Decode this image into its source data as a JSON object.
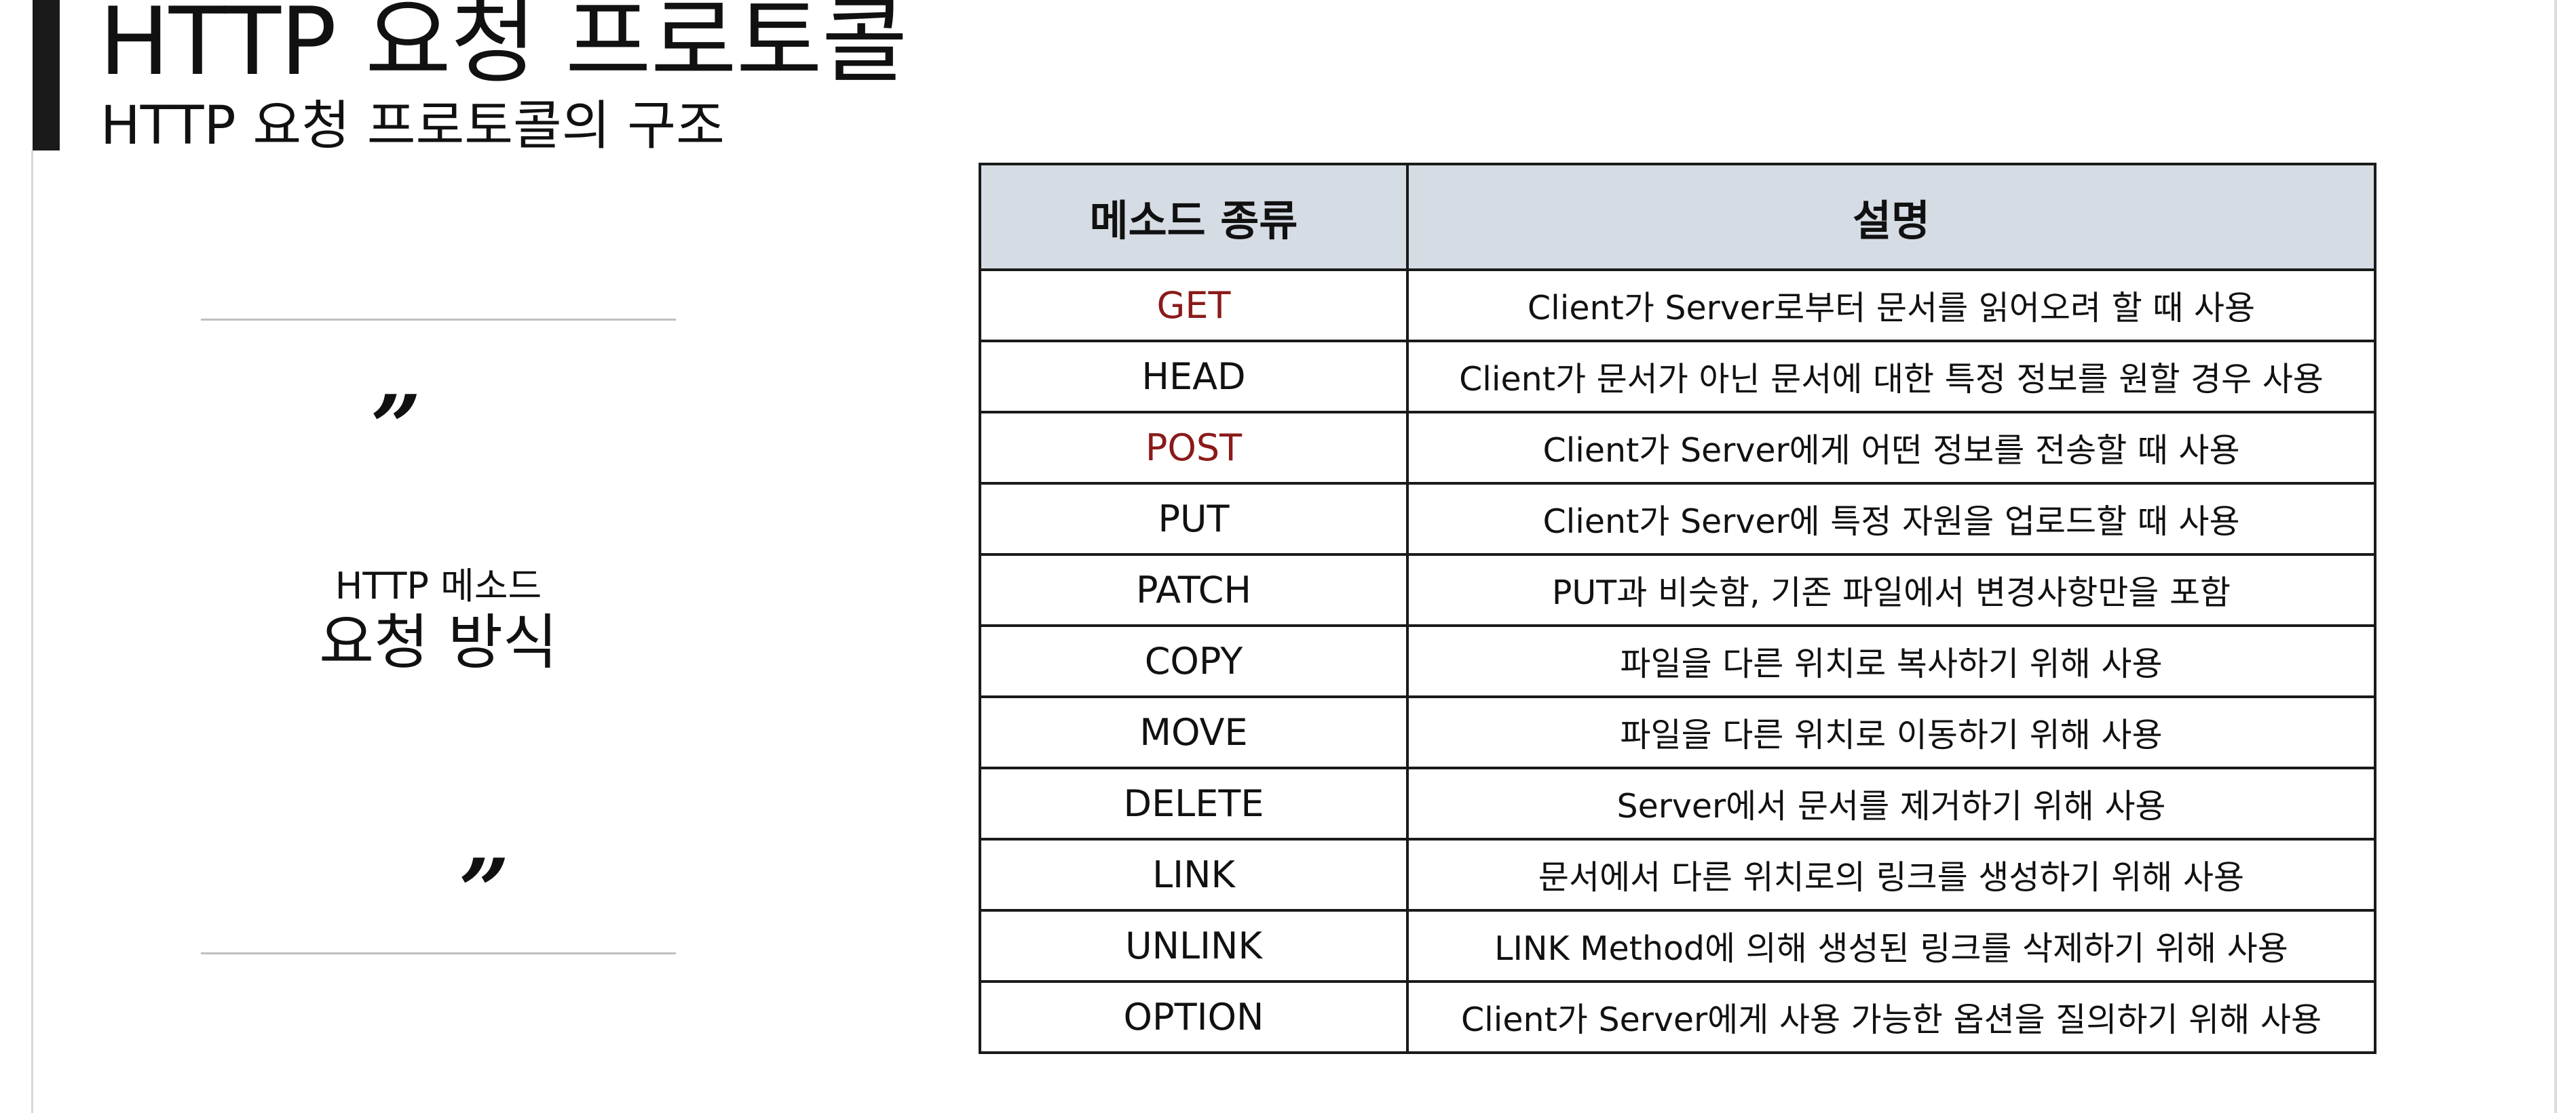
{
  "header": {
    "title": "HTTP 요청 프로토콜",
    "subtitle": "HTTP 요청 프로토콜의 구조"
  },
  "quote": {
    "open_mark": "”",
    "close_mark": "”",
    "line1": "HTTP 메소드",
    "line2": "요청 방식"
  },
  "table": {
    "headers": [
      "메소드 종류",
      "설명"
    ],
    "rows": [
      {
        "method": "GET",
        "description": "Client가 Server로부터 문서를 읽어오려 할 때 사용",
        "method_color": "#8b1a1a"
      },
      {
        "method": "HEAD",
        "description": "Client가 문서가 아닌 문서에 대한 특정 정보를 원할 경우 사용",
        "method_color": "#111111"
      },
      {
        "method": "POST",
        "description": "Client가 Server에게 어떤 정보를 전송할 때 사용",
        "method_color": "#8b1a1a"
      },
      {
        "method": "PUT",
        "description": "Client가 Server에 특정 자원을 업로드할 때 사용",
        "method_color": "#111111"
      },
      {
        "method": "PATCH",
        "description": "PUT과 비슷함, 기존 파일에서 변경사항만을 포함",
        "method_color": "#111111"
      },
      {
        "method": "COPY",
        "description": "파일을 다른 위치로 복사하기 위해 사용",
        "method_color": "#111111"
      },
      {
        "method": "MOVE",
        "description": "파일을 다른 위치로 이동하기 위해 사용",
        "method_color": "#111111"
      },
      {
        "method": "DELETE",
        "description": "Server에서 문서를 제거하기 위해 사용",
        "method_color": "#111111"
      },
      {
        "method": "LINK",
        "description": "문서에서 다른 위치로의 링크를 생성하기 위해 사용",
        "method_color": "#111111"
      },
      {
        "method": "UNLINK",
        "description": "LINK Method에 의해 생성된 링크를 삭제하기 위해 사용",
        "method_color": "#111111"
      },
      {
        "method": "OPTION",
        "description": "Client가 Server에게 사용 가능한 옵션을 질의하기 위해 사용",
        "method_color": "#111111"
      }
    ]
  },
  "colors": {
    "header_bg": "#d6dce4",
    "accent_method": "#8b1a1a",
    "title_bar": "#1a1a1a"
  }
}
